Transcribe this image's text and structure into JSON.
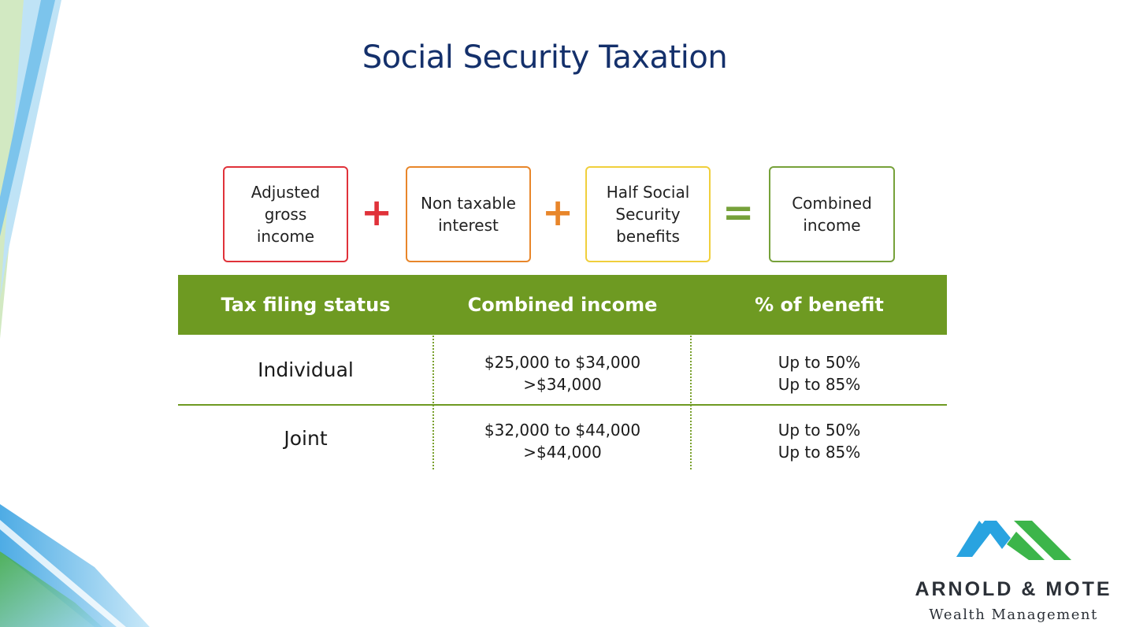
{
  "title": "Social Security Taxation",
  "formula": {
    "terms": [
      {
        "label": "Adjusted\ngross\nincome",
        "color": "#e0323a"
      },
      {
        "label": "Non taxable\ninterest",
        "color": "#e8862a"
      },
      {
        "label": "Half Social\nSecurity\nbenefits",
        "color": "#f0cf3c"
      },
      {
        "label": "Combined\nincome",
        "color": "#76a13a"
      }
    ],
    "operators": [
      {
        "symbol": "+",
        "color": "#e0323a"
      },
      {
        "symbol": "+",
        "color": "#e8862a"
      },
      {
        "symbol": "=",
        "color": "#76a13a"
      }
    ]
  },
  "table": {
    "header_color": "#6e9a22",
    "headers": [
      "Tax filing status",
      "Combined income",
      "% of benefit"
    ],
    "rows": [
      {
        "status": "Individual",
        "income": [
          "$25,000 to $34,000",
          ">$34,000"
        ],
        "benefit": [
          "Up to 50%",
          "Up to 85%"
        ]
      },
      {
        "status": "Joint",
        "income": [
          "$32,000 to $44,000",
          ">$44,000"
        ],
        "benefit": [
          "Up to 50%",
          "Up to 85%"
        ]
      }
    ]
  },
  "branding": {
    "logo_icon": "mountain-peaks-icon",
    "logo_colors": [
      "#29a3e0",
      "#3cb54a"
    ],
    "name": "ARNOLD & MOTE",
    "tagline": "Wealth Management"
  }
}
